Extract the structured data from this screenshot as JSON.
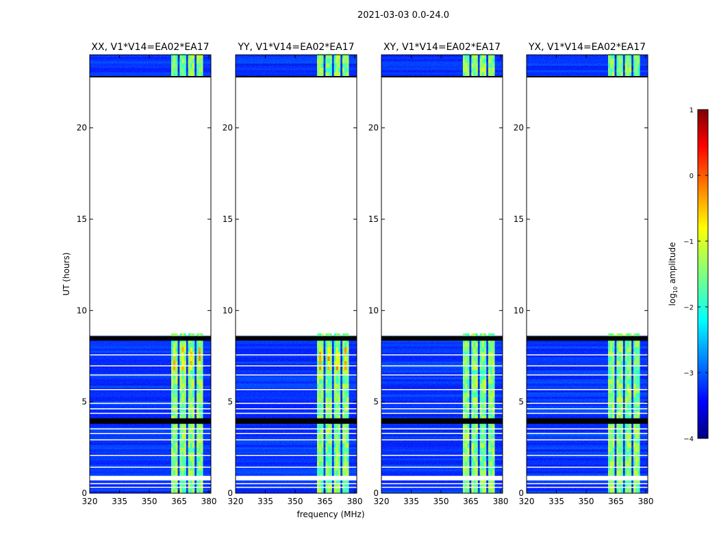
{
  "figure": {
    "suptitle": "2021-03-03 0.0-24.0"
  },
  "chart_data": {
    "type": "heatmap",
    "title": "2021-03-03 0.0-24.0",
    "xlabel": "frequency (MHz)",
    "ylabel": "UT (hours)",
    "xlim": [
      320,
      381
    ],
    "ylim": [
      0,
      24
    ],
    "xticks": [
      320,
      335,
      350,
      365,
      380
    ],
    "yticks": [
      0,
      5,
      10,
      15,
      20
    ],
    "colorbar": {
      "label": "log10 amplitude",
      "label_base": "log",
      "label_sub": "10",
      "label_rest": " amplitude",
      "range": [
        -4,
        1
      ],
      "ticks": [
        "1",
        "0",
        "−1",
        "−2",
        "−3",
        "−4"
      ],
      "colormap": "jet"
    },
    "panels": [
      {
        "title": "XX, V1*V14=EA02*EA17",
        "pol": "XX"
      },
      {
        "title": "YY, V1*V14=EA02*EA17",
        "pol": "YY"
      },
      {
        "title": "XY, V1*V14=EA02*EA17",
        "pol": "XY"
      },
      {
        "title": "YX, V1*V14=EA02*EA17",
        "pol": "YX"
      }
    ],
    "data_hours": [
      [
        0,
        8.6
      ],
      [
        22.8,
        24
      ]
    ],
    "flagged_hours": [
      [
        8.35,
        8.6
      ],
      [
        3.8,
        4.1
      ]
    ],
    "rfi_band_mhz": [
      361,
      378
    ],
    "rfi_level_log10": -1.5,
    "background_level_log10": -3.2
  }
}
